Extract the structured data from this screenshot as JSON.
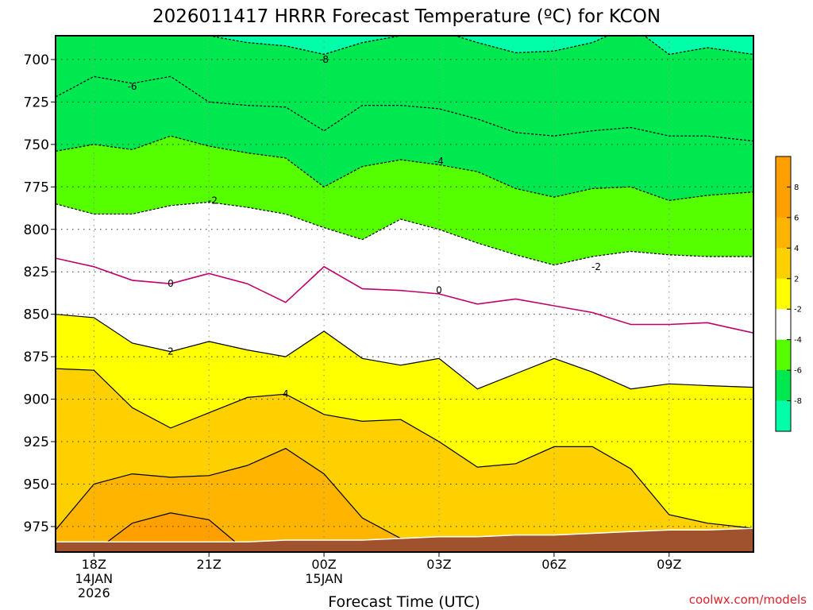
{
  "chart_data": {
    "type": "contour",
    "title": "2026011417 HRRR Forecast Temperature (ºC) for KCON",
    "xlabel": "Forecast Time (UTC)",
    "ylabel": "",
    "x_range_hours": [
      -1,
      17.2
    ],
    "y_range_hpa": [
      686,
      990
    ],
    "y_axis_inverted": true,
    "y_ticks": [
      700,
      725,
      750,
      775,
      800,
      825,
      850,
      875,
      900,
      925,
      950,
      975
    ],
    "x_ticks": [
      {
        "hour": 0,
        "label": "18Z",
        "sub": [
          "14JAN",
          "2026"
        ]
      },
      {
        "hour": 3,
        "label": "21Z",
        "sub": []
      },
      {
        "hour": 6,
        "label": "00Z",
        "sub": [
          "15JAN"
        ]
      },
      {
        "hour": 9,
        "label": "03Z",
        "sub": []
      },
      {
        "hour": 12,
        "label": "06Z",
        "sub": []
      },
      {
        "hour": 15,
        "label": "09Z",
        "sub": []
      }
    ],
    "grid": true,
    "contour_interval_c": 2,
    "contour_x_hours": [
      -1,
      0,
      1,
      2,
      3,
      4,
      5,
      6,
      7,
      8,
      9,
      10,
      11,
      12,
      13,
      14,
      15,
      16,
      17.2
    ],
    "contours": [
      {
        "level": -8,
        "label": "-8",
        "pressure": [
          680,
          680,
          680,
          680,
          686,
          690,
          692,
          697,
          690,
          686,
          683,
          690,
          696,
          695,
          690,
          680,
          697,
          693,
          697
        ]
      },
      {
        "level": -6,
        "label": "-6",
        "pressure": [
          722,
          710,
          714,
          710,
          725,
          727,
          728,
          742,
          727,
          727,
          729,
          735,
          743,
          745,
          742,
          740,
          745,
          745,
          748
        ]
      },
      {
        "level": -4,
        "label": "-4",
        "pressure": [
          754,
          750,
          753,
          745,
          751,
          755,
          758,
          775,
          763,
          759,
          762,
          766,
          776,
          781,
          776,
          775,
          783,
          780,
          778
        ]
      },
      {
        "level": -2,
        "label": "-2",
        "pressure": [
          785,
          791,
          791,
          786,
          784,
          787,
          791,
          799,
          806,
          794,
          800,
          808,
          815,
          821,
          816,
          813,
          815,
          816,
          816
        ]
      },
      {
        "level": 0,
        "label": "0",
        "pressure": [
          817,
          822,
          830,
          832,
          826,
          832,
          843,
          822,
          835,
          836,
          838,
          844,
          841,
          845,
          849,
          856,
          856,
          855,
          861
        ]
      },
      {
        "level": 2,
        "label": "2",
        "pressure": [
          850,
          852,
          867,
          872,
          866,
          871,
          875,
          860,
          876,
          880,
          876,
          894,
          885,
          876,
          884,
          894,
          891,
          892,
          893
        ]
      },
      {
        "level": 4,
        "label": "4",
        "pressure": [
          882,
          883,
          905,
          917,
          908,
          899,
          897,
          909,
          913,
          912,
          925,
          940,
          938,
          928,
          928,
          941,
          968,
          973,
          976
        ]
      },
      {
        "level": 6,
        "label": "6",
        "pressure": [
          977,
          950,
          944,
          946,
          945,
          939,
          929,
          944,
          970,
          982,
          984,
          984,
          984,
          984,
          984,
          984,
          984,
          984,
          984
        ]
      },
      {
        "level": 8,
        "label": "",
        "pressure": [
          990,
          990,
          973,
          967,
          971,
          990,
          990,
          990,
          990,
          990,
          990,
          990,
          990,
          990,
          990,
          990,
          990,
          990,
          990
        ]
      }
    ],
    "contour_label_positions": [
      {
        "label": "-8",
        "hour": 6.0,
        "pressure": 700
      },
      {
        "label": "-6",
        "hour": 1.0,
        "pressure": 716
      },
      {
        "label": "-4",
        "hour": 9.0,
        "pressure": 760
      },
      {
        "label": "-2",
        "hour": 3.1,
        "pressure": 783
      },
      {
        "label": "-2",
        "hour": 13.1,
        "pressure": 822
      },
      {
        "label": "0",
        "hour": 2.0,
        "pressure": 832
      },
      {
        "label": "0",
        "hour": 9.0,
        "pressure": 836
      },
      {
        "label": "2",
        "hour": 2.0,
        "pressure": 872
      },
      {
        "label": "4",
        "hour": 5.0,
        "pressure": 897
      }
    ],
    "surface_pressure_hpa": [
      984,
      984,
      984,
      984,
      984,
      984,
      983,
      983,
      983,
      982,
      981,
      981,
      980,
      980,
      979,
      978,
      977,
      977,
      976
    ],
    "colorbar": {
      "labels": [
        "8",
        "6",
        "4",
        "2",
        "-2",
        "-4",
        "-6",
        "-8"
      ],
      "levels": [
        8,
        6,
        4,
        2,
        -2,
        -4,
        -6,
        -8
      ],
      "colors": [
        "#ffa000",
        "#ffb400",
        "#ffd000",
        "#ffff00",
        "#ffffff",
        "#55ff00",
        "#00e850",
        "#00ffa8"
      ]
    },
    "band_colors": {
      "below_-8": "#00ffa8",
      "-8_to_-6": "#00e850",
      "-6_to_-4": "#00e850",
      "-4_to_-2": "#55ff00",
      "-2_to_0": "#ffffff",
      "0_to_2": "#ffffff",
      "2_to_4": "#ffff00",
      "4_to_6": "#ffd000",
      "6_to_8": "#ffb400",
      "above_8": "#ffa000"
    },
    "line_colors": {
      "zero": "#c0006a",
      "negative": "#000000",
      "positive": "#000000"
    },
    "surface_color": "#a0522d"
  },
  "footer": {
    "source": "coolwx.com/models",
    "source_color": "#e0202a"
  }
}
